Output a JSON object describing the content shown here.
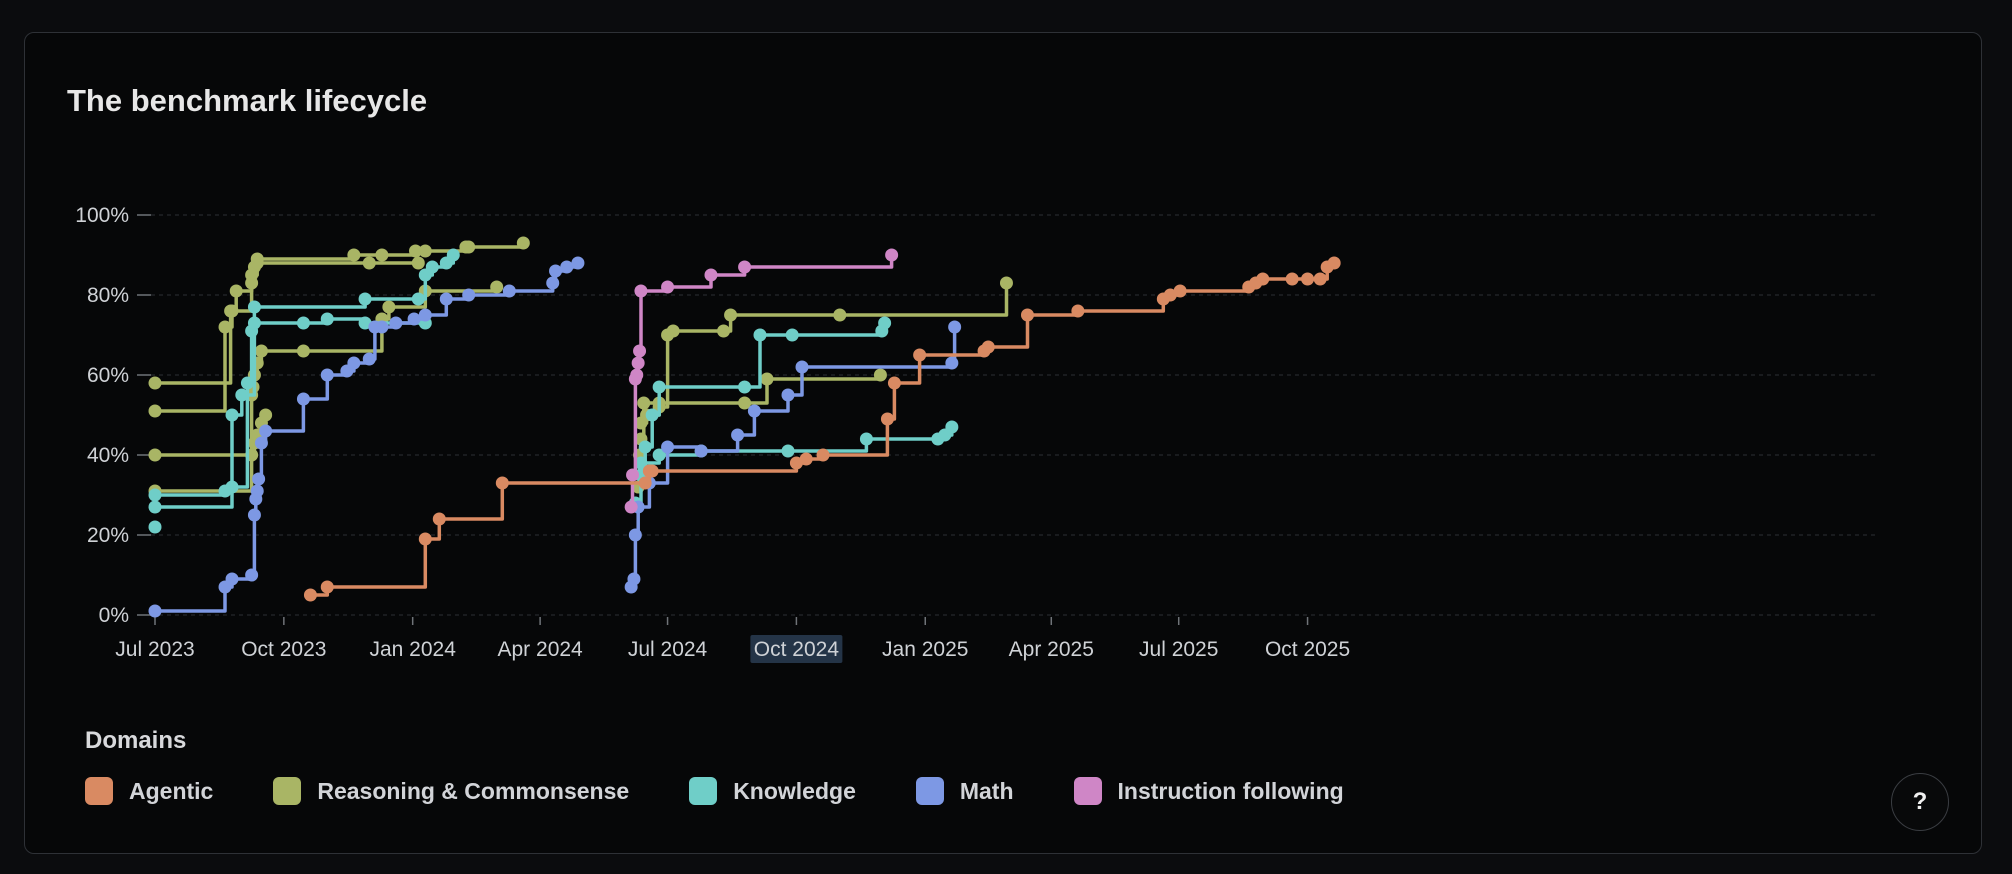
{
  "card": {
    "help_label": "?"
  },
  "legend": {
    "title": "Domains",
    "items": [
      {
        "label": "Agentic",
        "color": "#d98a62"
      },
      {
        "label": "Reasoning & Commonsense",
        "color": "#a9b565"
      },
      {
        "label": "Knowledge",
        "color": "#6fcec8"
      },
      {
        "label": "Math",
        "color": "#7d98e4"
      },
      {
        "label": "Instruction following",
        "color": "#cf86c6"
      }
    ]
  },
  "chart_data": {
    "type": "line",
    "title": "The benchmark lifecycle",
    "xlabel": "",
    "ylabel": "",
    "ylim": [
      0,
      100
    ],
    "xlim": [
      "2023-07-01",
      "2025-12-31"
    ],
    "x_ticks": [
      "Jul 2023",
      "Oct 2023",
      "Jan 2024",
      "Apr 2024",
      "Jul 2024",
      "Oct 2024",
      "Jan 2025",
      "Apr 2025",
      "Jul 2025",
      "Oct 2025"
    ],
    "highlighted_x_tick": "Oct 2024",
    "y_ticks": [
      "0%",
      "20%",
      "40%",
      "60%",
      "80%",
      "100%"
    ],
    "y_tick_values": [
      0,
      20,
      40,
      60,
      80,
      100
    ],
    "grid": "horizontal dashed",
    "line_style": "step",
    "series": [
      {
        "domain": "Reasoning & Commonsense",
        "color": "#a9b565",
        "points": [
          [
            "2023-07-01",
            58
          ],
          [
            "2023-08-24",
            76
          ],
          [
            "2023-08-28",
            81
          ],
          [
            "2023-09-08",
            83
          ],
          [
            "2023-09-10",
            87
          ],
          [
            "2023-09-12",
            89
          ],
          [
            "2023-11-20",
            90
          ],
          [
            "2023-12-10",
            90
          ],
          [
            "2024-01-03",
            91
          ],
          [
            "2024-01-10",
            91
          ],
          [
            "2024-02-08",
            92
          ],
          [
            "2024-02-10",
            92
          ],
          [
            "2024-03-20",
            93
          ]
        ]
      },
      {
        "domain": "Reasoning & Commonsense",
        "color": "#a9b565",
        "points": [
          [
            "2023-07-01",
            51
          ],
          [
            "2023-08-20",
            72
          ],
          [
            "2023-08-25",
            76
          ],
          [
            "2023-09-08",
            85
          ],
          [
            "2023-09-12",
            88
          ],
          [
            "2023-12-01",
            88
          ],
          [
            "2024-01-05",
            88
          ]
        ]
      },
      {
        "domain": "Reasoning & Commonsense",
        "color": "#a9b565",
        "points": [
          [
            "2023-07-01",
            40
          ],
          [
            "2023-09-08",
            55
          ],
          [
            "2023-09-09",
            57
          ],
          [
            "2023-09-10",
            60
          ],
          [
            "2023-09-12",
            63
          ],
          [
            "2023-09-15",
            66
          ],
          [
            "2023-10-15",
            66
          ],
          [
            "2023-12-10",
            74
          ],
          [
            "2023-12-15",
            77
          ],
          [
            "2024-01-10",
            81
          ],
          [
            "2024-03-01",
            82
          ]
        ]
      },
      {
        "domain": "Reasoning & Commonsense",
        "color": "#a9b565",
        "points": [
          [
            "2023-07-01",
            31
          ],
          [
            "2023-09-08",
            40
          ],
          [
            "2023-09-10",
            43
          ],
          [
            "2023-09-12",
            45
          ],
          [
            "2023-09-15",
            48
          ],
          [
            "2023-09-18",
            50
          ]
        ]
      },
      {
        "domain": "Reasoning & Commonsense",
        "color": "#a9b565",
        "points": [
          [
            "2024-06-10",
            32
          ],
          [
            "2024-06-11",
            40
          ],
          [
            "2024-06-12",
            44
          ],
          [
            "2024-06-14",
            53
          ],
          [
            "2024-06-25",
            52
          ],
          [
            "2024-07-01",
            70
          ],
          [
            "2024-07-05",
            71
          ],
          [
            "2024-08-10",
            71
          ],
          [
            "2024-08-15",
            75
          ],
          [
            "2024-11-01",
            75
          ],
          [
            "2025-02-28",
            83
          ]
        ]
      },
      {
        "domain": "Reasoning & Commonsense",
        "color": "#a9b565",
        "points": [
          [
            "2024-06-12",
            48
          ],
          [
            "2024-06-16",
            50
          ],
          [
            "2024-06-25",
            53
          ],
          [
            "2024-08-25",
            53
          ],
          [
            "2024-09-10",
            59
          ],
          [
            "2024-11-30",
            60
          ]
        ]
      },
      {
        "domain": "Knowledge",
        "color": "#6fcec8",
        "points": [
          [
            "2023-07-01",
            22
          ]
        ]
      },
      {
        "domain": "Knowledge",
        "color": "#6fcec8",
        "points": [
          [
            "2023-07-01",
            27
          ],
          [
            "2023-08-25",
            32
          ],
          [
            "2023-09-05",
            58
          ],
          [
            "2023-09-08",
            71
          ],
          [
            "2023-09-10",
            77
          ],
          [
            "2023-11-28",
            79
          ],
          [
            "2024-01-05",
            79
          ],
          [
            "2024-01-10",
            85
          ],
          [
            "2024-01-15",
            87
          ],
          [
            "2024-01-25",
            88
          ],
          [
            "2024-01-30",
            90
          ]
        ]
      },
      {
        "domain": "Knowledge",
        "color": "#6fcec8",
        "points": [
          [
            "2023-07-01",
            30
          ],
          [
            "2023-08-20",
            31
          ],
          [
            "2023-08-25",
            50
          ],
          [
            "2023-09-01",
            55
          ],
          [
            "2023-09-10",
            73
          ],
          [
            "2023-10-15",
            73
          ],
          [
            "2023-11-01",
            74
          ],
          [
            "2023-11-28",
            73
          ],
          [
            "2024-01-10",
            73
          ]
        ]
      },
      {
        "domain": "Knowledge",
        "color": "#6fcec8",
        "points": [
          [
            "2024-06-08",
            28
          ],
          [
            "2024-06-12",
            35
          ],
          [
            "2024-06-15",
            42
          ],
          [
            "2024-06-20",
            50
          ],
          [
            "2024-06-25",
            57
          ],
          [
            "2024-08-25",
            57
          ],
          [
            "2024-09-05",
            70
          ],
          [
            "2024-09-28",
            70
          ],
          [
            "2024-12-01",
            71
          ],
          [
            "2024-12-03",
            73
          ]
        ]
      },
      {
        "domain": "Knowledge",
        "color": "#6fcec8",
        "points": [
          [
            "2024-06-12",
            38
          ],
          [
            "2024-06-25",
            40
          ],
          [
            "2024-07-25",
            41
          ],
          [
            "2024-09-25",
            41
          ],
          [
            "2024-11-20",
            44
          ],
          [
            "2025-01-10",
            44
          ],
          [
            "2025-01-15",
            45
          ],
          [
            "2025-01-20",
            47
          ]
        ]
      },
      {
        "domain": "Math",
        "color": "#7d98e4",
        "points": [
          [
            "2023-07-01",
            1
          ],
          [
            "2023-08-20",
            7
          ],
          [
            "2023-08-25",
            9
          ],
          [
            "2023-09-08",
            10
          ],
          [
            "2023-09-10",
            25
          ],
          [
            "2023-09-11",
            29
          ],
          [
            "2023-09-12",
            31
          ],
          [
            "2023-09-13",
            34
          ],
          [
            "2023-09-15",
            43
          ],
          [
            "2023-09-18",
            46
          ],
          [
            "2023-10-15",
            54
          ],
          [
            "2023-11-01",
            60
          ],
          [
            "2023-11-15",
            61
          ],
          [
            "2023-11-20",
            63
          ],
          [
            "2023-12-01",
            64
          ],
          [
            "2023-12-05",
            72
          ],
          [
            "2023-12-10",
            72
          ],
          [
            "2023-12-20",
            73
          ],
          [
            "2024-01-02",
            74
          ],
          [
            "2024-01-10",
            75
          ],
          [
            "2024-01-25",
            79
          ],
          [
            "2024-02-10",
            80
          ],
          [
            "2024-03-10",
            81
          ],
          [
            "2024-04-10",
            83
          ],
          [
            "2024-04-12",
            86
          ],
          [
            "2024-04-20",
            87
          ],
          [
            "2024-04-28",
            88
          ]
        ]
      },
      {
        "domain": "Math",
        "color": "#7d98e4",
        "points": [
          [
            "2024-06-05",
            7
          ],
          [
            "2024-06-07",
            9
          ],
          [
            "2024-06-08",
            20
          ],
          [
            "2024-06-10",
            27
          ],
          [
            "2024-06-18",
            33
          ],
          [
            "2024-07-01",
            42
          ],
          [
            "2024-07-25",
            41
          ],
          [
            "2024-08-20",
            45
          ],
          [
            "2024-09-01",
            51
          ],
          [
            "2024-09-25",
            55
          ],
          [
            "2024-10-05",
            62
          ],
          [
            "2025-01-20",
            63
          ],
          [
            "2025-01-22",
            72
          ]
        ]
      },
      {
        "domain": "Instruction following",
        "color": "#cf86c6",
        "points": [
          [
            "2024-06-05",
            27
          ],
          [
            "2024-06-06",
            35
          ],
          [
            "2024-06-08",
            59
          ],
          [
            "2024-06-09",
            60
          ],
          [
            "2024-06-10",
            63
          ],
          [
            "2024-06-11",
            66
          ],
          [
            "2024-06-12",
            81
          ],
          [
            "2024-07-01",
            82
          ],
          [
            "2024-08-01",
            85
          ],
          [
            "2024-08-25",
            87
          ],
          [
            "2024-12-08",
            90
          ]
        ]
      },
      {
        "domain": "Agentic",
        "color": "#d98a62",
        "points": [
          [
            "2023-10-20",
            5
          ],
          [
            "2023-11-01",
            7
          ],
          [
            "2024-01-10",
            19
          ],
          [
            "2024-01-20",
            24
          ],
          [
            "2024-03-05",
            33
          ],
          [
            "2024-06-15",
            33
          ],
          [
            "2024-06-18",
            36
          ],
          [
            "2024-06-20",
            36
          ],
          [
            "2024-10-01",
            38
          ],
          [
            "2024-10-08",
            39
          ],
          [
            "2024-10-20",
            40
          ],
          [
            "2024-12-05",
            49
          ],
          [
            "2024-12-10",
            58
          ],
          [
            "2024-12-28",
            65
          ],
          [
            "2025-02-12",
            66
          ],
          [
            "2025-02-15",
            67
          ],
          [
            "2025-03-15",
            75
          ],
          [
            "2025-04-20",
            76
          ],
          [
            "2025-06-20",
            79
          ],
          [
            "2025-06-25",
            80
          ],
          [
            "2025-07-02",
            81
          ],
          [
            "2025-08-20",
            82
          ],
          [
            "2025-08-25",
            83
          ],
          [
            "2025-08-30",
            84
          ],
          [
            "2025-09-20",
            84
          ],
          [
            "2025-10-01",
            84
          ],
          [
            "2025-10-10",
            84
          ],
          [
            "2025-10-15",
            87
          ],
          [
            "2025-10-20",
            88
          ]
        ]
      }
    ]
  }
}
